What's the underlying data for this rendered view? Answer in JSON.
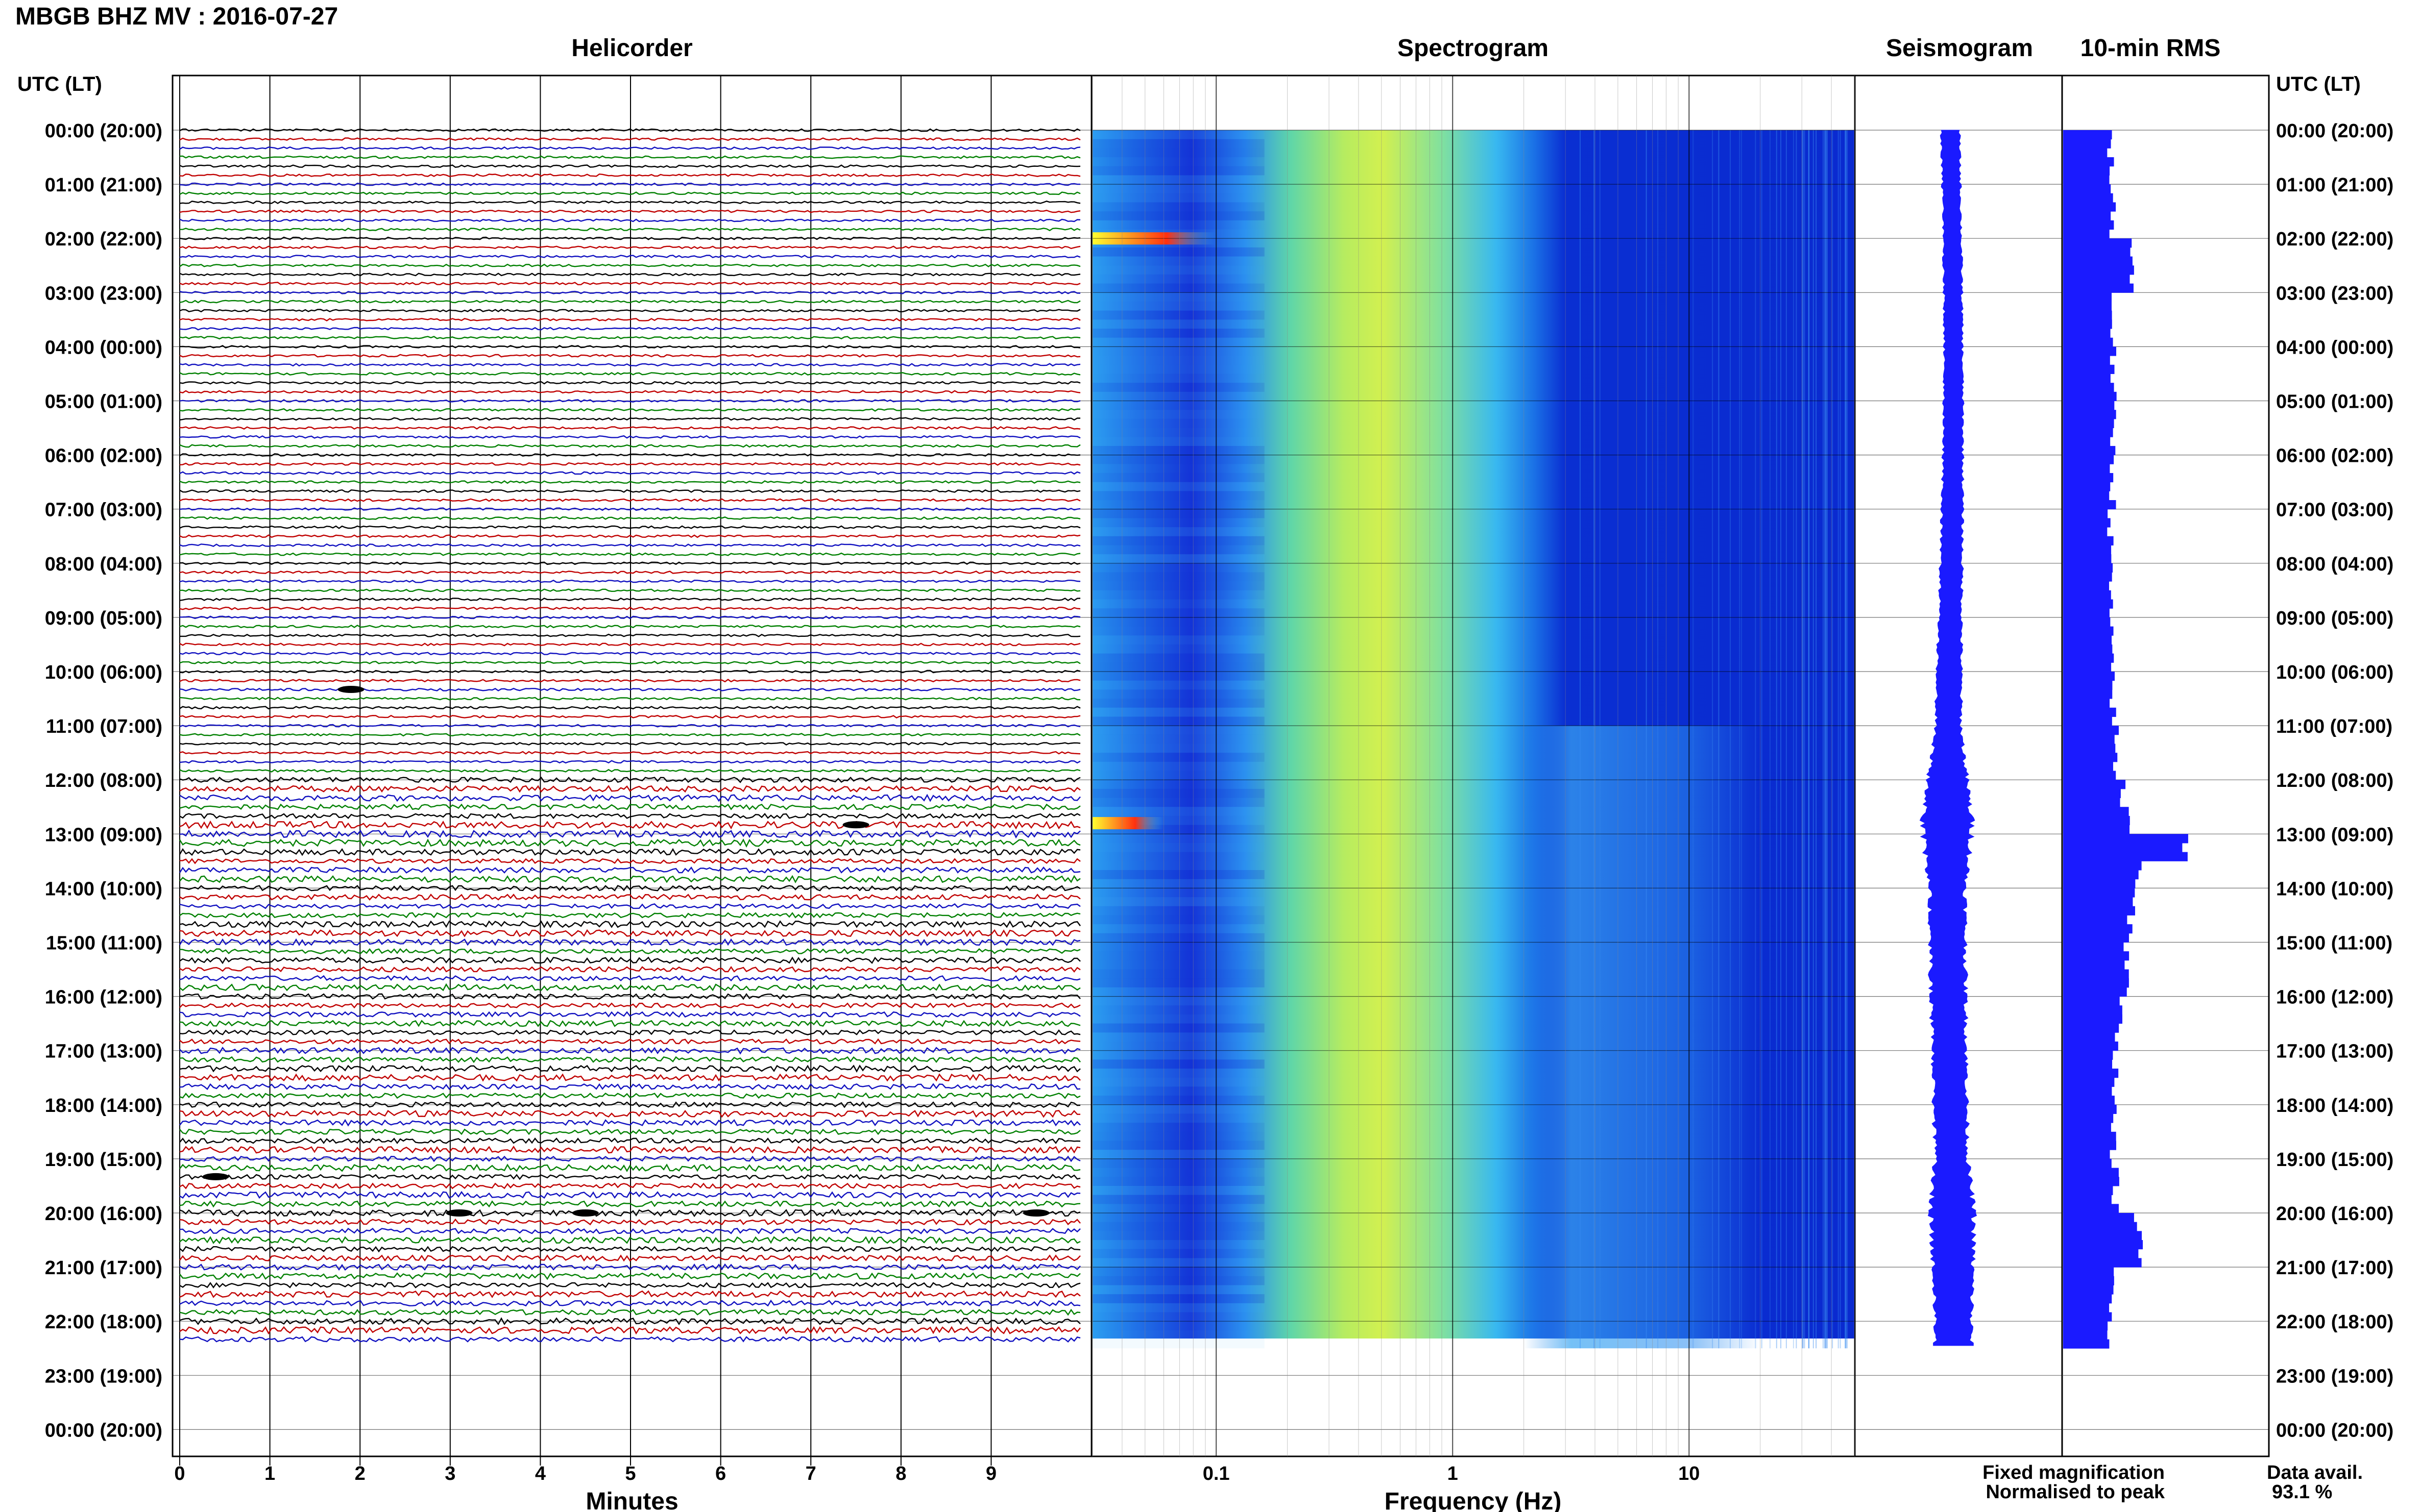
{
  "header": {
    "station_title": "MBGB BHZ MV : 2016-07-27",
    "time_axis_label_left": "UTC (LT)",
    "time_axis_label_right": "UTC (LT)"
  },
  "panels": {
    "helicorder": "Helicorder",
    "spectrogram": "Spectrogram",
    "seismogram": "Seismogram",
    "rms": "10-min RMS"
  },
  "axes": {
    "minutes_label": "Minutes",
    "frequency_label": "Frequency (Hz)",
    "time_ticks": [
      "00:00 (20:00)",
      "01:00 (21:00)",
      "02:00 (22:00)",
      "03:00 (23:00)",
      "04:00 (00:00)",
      "05:00 (01:00)",
      "06:00 (02:00)",
      "07:00 (03:00)",
      "08:00 (04:00)",
      "09:00 (05:00)",
      "10:00 (06:00)",
      "11:00 (07:00)",
      "12:00 (08:00)",
      "13:00 (09:00)",
      "14:00 (10:00)",
      "15:00 (11:00)",
      "16:00 (12:00)",
      "17:00 (13:00)",
      "18:00 (14:00)",
      "19:00 (15:00)",
      "20:00 (16:00)",
      "21:00 (17:00)",
      "22:00 (18:00)",
      "23:00 (19:00)",
      "00:00 (20:00)"
    ],
    "minute_ticks": [
      "0",
      "1",
      "2",
      "3",
      "4",
      "5",
      "6",
      "7",
      "8",
      "9"
    ],
    "frequency_ticks": [
      "0.1",
      "1",
      "10"
    ]
  },
  "legend": {
    "fixed": "Fixed magnification",
    "normalised": "Normalised to peak",
    "fixed_color": "#1a1aff",
    "normalised_color": "#ff1a1a"
  },
  "availability": {
    "label": "Data avail.",
    "value": "93.1 %"
  },
  "chart_data": [
    {
      "type": "line",
      "title": "Helicorder",
      "xlabel": "Minutes",
      "xlim": [
        0,
        10
      ],
      "trace_colors": [
        "#000000",
        "#c00000",
        "#1010c0",
        "#008000"
      ],
      "data_hours": [
        0,
        22.5
      ],
      "notable_events": [
        {
          "hour": 10.33,
          "minute": 1.9
        },
        {
          "hour": 12.83,
          "minute": 7.5
        },
        {
          "hour": 19.33,
          "minute": 0.4
        },
        {
          "hour": 20.0,
          "minute": 3.1
        },
        {
          "hour": 20.0,
          "minute": 4.5
        },
        {
          "hour": 20.0,
          "minute": 9.5
        }
      ]
    },
    {
      "type": "heatmap",
      "title": "Spectrogram",
      "xlabel": "Frequency (Hz)",
      "x_scale": "log",
      "xlim": [
        0.03,
        50
      ],
      "data_hours": [
        0,
        22.5
      ],
      "energy_peak_hz": 0.35,
      "noise_band_hz": [
        2,
        20
      ],
      "noise_band_active_hours": [
        11,
        22.5
      ],
      "low_freq_bursts": [
        {
          "hour": 2.0,
          "hz_range": [
            0.03,
            0.1
          ]
        },
        {
          "hour": 12.8,
          "hz_range": [
            0.03,
            0.06
          ]
        }
      ]
    },
    {
      "type": "line",
      "title": "Seismogram",
      "data_hours": [
        0,
        22.5
      ],
      "relative_amplitude": [
        {
          "hour": 0,
          "value": 0.25
        },
        {
          "hour": 4,
          "value": 0.25
        },
        {
          "hour": 8,
          "value": 0.3
        },
        {
          "hour": 11,
          "value": 0.35
        },
        {
          "hour": 12.9,
          "value": 0.7
        },
        {
          "hour": 14,
          "value": 0.5
        },
        {
          "hour": 19,
          "value": 0.45
        },
        {
          "hour": 20,
          "value": 0.6
        },
        {
          "hour": 22,
          "value": 0.5
        }
      ]
    },
    {
      "type": "bar",
      "title": "10-min RMS",
      "orientation": "horizontal",
      "data_hours": [
        0,
        22.5
      ],
      "relative_rms": [
        {
          "hour": 0.0,
          "value": 0.38
        },
        {
          "hour": 1.0,
          "value": 0.4
        },
        {
          "hour": 2.0,
          "value": 0.55
        },
        {
          "hour": 3.0,
          "value": 0.4
        },
        {
          "hour": 4.0,
          "value": 0.4
        },
        {
          "hour": 5.0,
          "value": 0.4
        },
        {
          "hour": 6.0,
          "value": 0.4
        },
        {
          "hour": 7.0,
          "value": 0.38
        },
        {
          "hour": 8.0,
          "value": 0.38
        },
        {
          "hour": 9.0,
          "value": 0.38
        },
        {
          "hour": 10.0,
          "value": 0.4
        },
        {
          "hour": 11.0,
          "value": 0.42
        },
        {
          "hour": 12.0,
          "value": 0.48
        },
        {
          "hour": 12.5,
          "value": 0.55
        },
        {
          "hour": 13.0,
          "value": 1.0
        },
        {
          "hour": 13.5,
          "value": 0.62
        },
        {
          "hour": 14.0,
          "value": 0.55
        },
        {
          "hour": 15.0,
          "value": 0.5
        },
        {
          "hour": 16.0,
          "value": 0.45
        },
        {
          "hour": 17.0,
          "value": 0.42
        },
        {
          "hour": 18.0,
          "value": 0.4
        },
        {
          "hour": 19.0,
          "value": 0.42
        },
        {
          "hour": 20.0,
          "value": 0.6
        },
        {
          "hour": 21.0,
          "value": 0.4
        },
        {
          "hour": 22.0,
          "value": 0.38
        }
      ]
    }
  ]
}
